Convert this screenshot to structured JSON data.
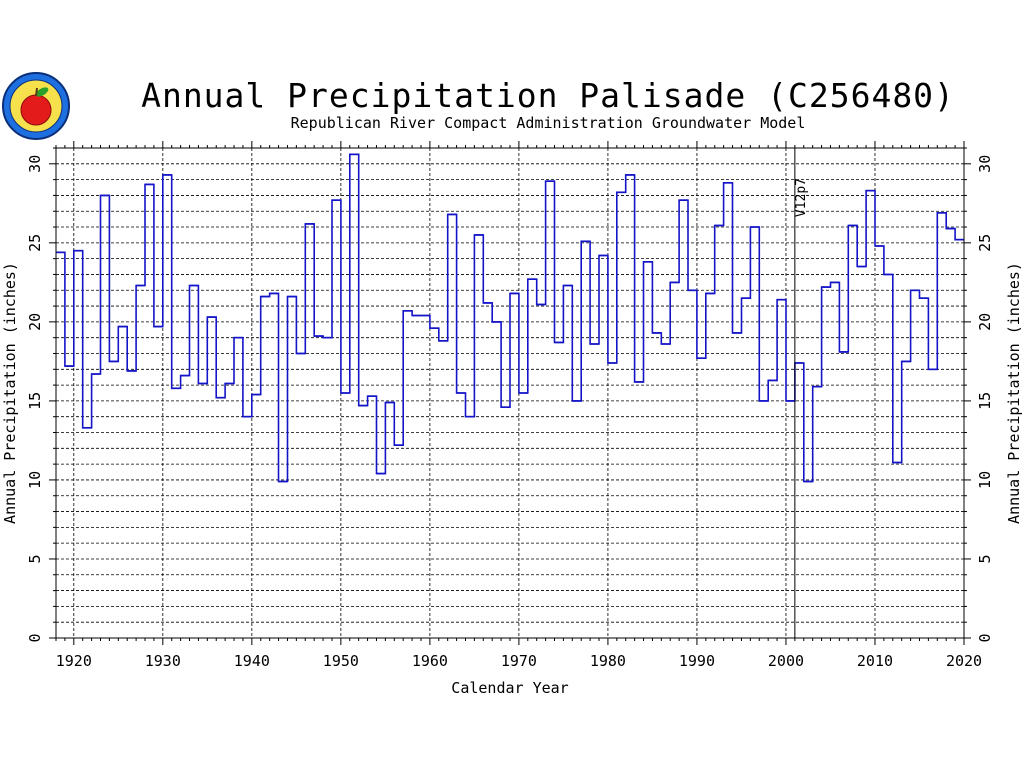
{
  "logo": {
    "icon": "apple-seal-logo",
    "text": "REPUBLICAN RIVER COMPACT ADMINISTRATION"
  },
  "chart_data": {
    "type": "line",
    "step": true,
    "title": "Annual Precipitation Palisade (C256480)",
    "subtitle": "Republican River Compact Administration Groundwater Model",
    "xlabel": "Calendar Year",
    "ylabel": "Annual Precipitation (inches)",
    "ylabel_right": "Annual Precipitation (inches)",
    "xlim": [
      1918,
      2020
    ],
    "ylim": [
      0,
      31
    ],
    "xticks": [
      1920,
      1930,
      1940,
      1950,
      1960,
      1970,
      1980,
      1990,
      2000,
      2010,
      2020
    ],
    "yticks": [
      0,
      5,
      10,
      15,
      20,
      25,
      30
    ],
    "grid": true,
    "vertical_marker": {
      "x": 2001,
      "label": "V12p7"
    },
    "series": [
      {
        "color": "#1414c8",
        "x": [
          1918,
          1919,
          1920,
          1921,
          1922,
          1923,
          1924,
          1925,
          1926,
          1927,
          1928,
          1929,
          1930,
          1931,
          1932,
          1933,
          1934,
          1935,
          1936,
          1937,
          1938,
          1939,
          1940,
          1941,
          1942,
          1943,
          1944,
          1945,
          1946,
          1947,
          1948,
          1949,
          1950,
          1951,
          1952,
          1953,
          1954,
          1955,
          1956,
          1957,
          1958,
          1959,
          1960,
          1961,
          1962,
          1963,
          1964,
          1965,
          1966,
          1967,
          1968,
          1969,
          1970,
          1971,
          1972,
          1973,
          1974,
          1975,
          1976,
          1977,
          1978,
          1979,
          1980,
          1981,
          1982,
          1983,
          1984,
          1985,
          1986,
          1987,
          1988,
          1989,
          1990,
          1991,
          1992,
          1993,
          1994,
          1995,
          1996,
          1997,
          1998,
          1999,
          2000,
          2001,
          2002,
          2003,
          2004,
          2005,
          2006,
          2007,
          2008,
          2009,
          2010,
          2011,
          2012,
          2013,
          2014,
          2015,
          2016,
          2017,
          2018,
          2019
        ],
        "y": [
          24.4,
          17.2,
          24.5,
          13.3,
          16.7,
          28.0,
          17.5,
          19.7,
          16.9,
          22.3,
          28.7,
          19.7,
          29.3,
          15.8,
          16.6,
          22.3,
          16.1,
          20.3,
          15.2,
          16.1,
          19.0,
          14.0,
          15.4,
          21.6,
          21.8,
          9.9,
          21.6,
          18.0,
          26.2,
          19.1,
          19.0,
          27.7,
          15.5,
          30.6,
          14.7,
          15.3,
          10.4,
          14.9,
          12.2,
          20.7,
          20.4,
          20.4,
          19.6,
          18.8,
          26.8,
          15.5,
          14.0,
          25.5,
          21.2,
          20.0,
          14.6,
          21.8,
          15.5,
          22.7,
          21.1,
          28.9,
          18.7,
          22.3,
          15.0,
          25.1,
          18.6,
          24.2,
          17.4,
          28.2,
          29.3,
          16.2,
          23.8,
          19.3,
          18.6,
          22.5,
          27.7,
          22.0,
          17.7,
          21.8,
          26.1,
          28.8,
          19.3,
          21.5,
          26.0,
          15.0,
          16.3,
          21.4,
          15.0,
          17.4,
          9.9,
          15.9,
          22.2,
          22.5,
          18.1,
          26.1,
          23.5,
          28.3,
          24.8,
          23.0,
          11.1,
          17.5,
          22.0,
          21.5,
          17.0,
          26.9,
          25.9,
          25.2
        ]
      }
    ]
  }
}
